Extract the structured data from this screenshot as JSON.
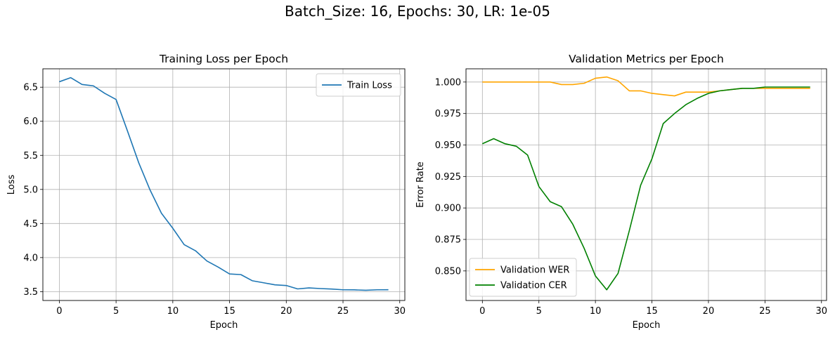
{
  "figure_title": "Batch_Size: 16, Epochs: 30, LR: 1e-05",
  "chart_data": [
    {
      "type": "line",
      "title": "Training Loss per Epoch",
      "xlabel": "Epoch",
      "ylabel": "Loss",
      "xlim": [
        -1.45,
        30.45
      ],
      "ylim": [
        3.37,
        6.77
      ],
      "xticks": [
        0,
        5,
        10,
        15,
        20,
        25,
        30
      ],
      "yticks": [
        3.5,
        4.0,
        4.5,
        5.0,
        5.5,
        6.0,
        6.5
      ],
      "ytick_labels": [
        "3.5",
        "4.0",
        "4.5",
        "5.0",
        "5.5",
        "6.0",
        "6.5"
      ],
      "grid": true,
      "legend_position": "upper right",
      "x": [
        0,
        1,
        2,
        3,
        4,
        5,
        6,
        7,
        8,
        9,
        10,
        11,
        12,
        13,
        14,
        15,
        16,
        17,
        18,
        19,
        20,
        21,
        22,
        23,
        24,
        25,
        26,
        27,
        28,
        29
      ],
      "series": [
        {
          "name": "Train Loss",
          "color": "#1f77b4",
          "values": [
            6.58,
            6.64,
            6.54,
            6.52,
            6.41,
            6.32,
            5.86,
            5.39,
            4.99,
            4.65,
            4.43,
            4.19,
            4.1,
            3.95,
            3.86,
            3.76,
            3.75,
            3.66,
            3.63,
            3.6,
            3.59,
            3.54,
            3.555,
            3.545,
            3.538,
            3.527,
            3.526,
            3.52,
            3.527,
            3.528
          ]
        }
      ]
    },
    {
      "type": "line",
      "title": "Validation Metrics per Epoch",
      "xlabel": "Epoch",
      "ylabel": "Error Rate",
      "xlim": [
        -1.45,
        30.45
      ],
      "ylim": [
        0.8265,
        1.0105
      ],
      "xticks": [
        0,
        5,
        10,
        15,
        20,
        25,
        30
      ],
      "yticks": [
        0.85,
        0.875,
        0.9,
        0.925,
        0.95,
        0.975,
        1.0
      ],
      "ytick_labels": [
        "0.850",
        "0.875",
        "0.900",
        "0.925",
        "0.950",
        "0.975",
        "1.000"
      ],
      "grid": true,
      "legend_position": "lower left",
      "x": [
        0,
        1,
        2,
        3,
        4,
        5,
        6,
        7,
        8,
        9,
        10,
        11,
        12,
        13,
        14,
        15,
        16,
        17,
        18,
        19,
        20,
        21,
        22,
        23,
        24,
        25,
        26,
        27,
        28,
        29
      ],
      "series": [
        {
          "name": "Validation WER",
          "color": "#ffa500",
          "values": [
            1.0,
            1.0,
            1.0,
            1.0,
            1.0,
            1.0,
            1.0,
            0.998,
            0.998,
            0.999,
            1.003,
            1.004,
            1.001,
            0.993,
            0.993,
            0.991,
            0.99,
            0.989,
            0.992,
            0.992,
            0.992,
            0.993,
            0.994,
            0.995,
            0.995,
            0.995,
            0.995,
            0.995,
            0.995,
            0.995
          ]
        },
        {
          "name": "Validation CER",
          "color": "#008000",
          "values": [
            0.951,
            0.955,
            0.951,
            0.949,
            0.942,
            0.917,
            0.905,
            0.901,
            0.887,
            0.868,
            0.846,
            0.835,
            0.848,
            0.882,
            0.918,
            0.939,
            0.967,
            0.975,
            0.982,
            0.987,
            0.991,
            0.993,
            0.994,
            0.995,
            0.995,
            0.996,
            0.996,
            0.996,
            0.996,
            0.996
          ]
        }
      ]
    }
  ]
}
